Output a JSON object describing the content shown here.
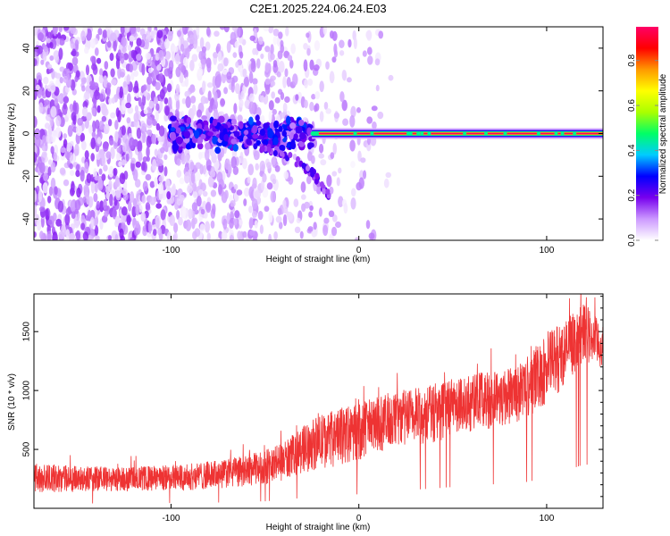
{
  "title": "C2E1.2025.224.06.24.E03",
  "chart_data": [
    {
      "type": "heatmap",
      "title": "C2E1.2025.224.06.24.E03",
      "xlabel": "Height of straight line (km)",
      "ylabel": "Frequency (Hz)",
      "xlim": [
        -173,
        130
      ],
      "ylim": [
        -50,
        50
      ],
      "x_ticks": [
        -100,
        0,
        100
      ],
      "y_ticks": [
        40,
        20,
        0,
        -20,
        -40
      ],
      "colorbar": {
        "label": "Normalized spectral amplitude",
        "ticks": [
          0.0,
          0.2,
          0.4,
          0.6,
          0.8
        ],
        "range": [
          0,
          0.95
        ],
        "colors": [
          "#ffffff",
          "#cc99ff",
          "#7700ee",
          "#0000ff",
          "#00ccff",
          "#00ff66",
          "#aaff00",
          "#ffff00",
          "#ff9900",
          "#ff0000",
          "#ff0066"
        ]
      },
      "features": [
        {
          "name": "noise",
          "x_range": [
            -173,
            -10
          ],
          "y_range": [
            -50,
            50
          ],
          "amplitude": 0.1
        },
        {
          "name": "signal onset",
          "x_range": [
            -100,
            -25
          ],
          "y_range": [
            -8,
            8
          ],
          "amplitude": 0.25
        },
        {
          "name": "negative frequency trail",
          "x": [
            -60,
            -45,
            -35,
            -25,
            -20,
            -15
          ],
          "y": [
            -5,
            -8,
            -12,
            -18,
            -24,
            -30
          ],
          "amplitude": 0.12
        },
        {
          "name": "carrier line",
          "x_range": [
            -25,
            130
          ],
          "y": 0,
          "amplitude": 0.95
        }
      ]
    },
    {
      "type": "line",
      "xlabel": "Height of straight line (km)",
      "ylabel": "SNR (10 * v/v)",
      "xlim": [
        -173,
        130
      ],
      "ylim": [
        0,
        1820
      ],
      "x_ticks": [
        -100,
        0,
        100
      ],
      "y_ticks": [
        500,
        1000,
        1500
      ],
      "color": "#ee3333",
      "series": [
        {
          "x": [
            -173,
            -150,
            -130,
            -110,
            -90,
            -70,
            -60,
            -50,
            -40,
            -30,
            -20,
            -10,
            0,
            10,
            20,
            40,
            60,
            80,
            90,
            100,
            110,
            120,
            130
          ],
          "y_low": [
            130,
            140,
            140,
            145,
            150,
            170,
            180,
            200,
            230,
            300,
            330,
            360,
            400,
            480,
            500,
            560,
            650,
            700,
            750,
            870,
            1050,
            1250,
            1150
          ],
          "y_high": [
            380,
            360,
            350,
            360,
            380,
            420,
            450,
            500,
            560,
            700,
            800,
            850,
            900,
            950,
            1000,
            1050,
            1150,
            1200,
            1300,
            1500,
            1600,
            1750,
            1550
          ]
        }
      ]
    }
  ]
}
